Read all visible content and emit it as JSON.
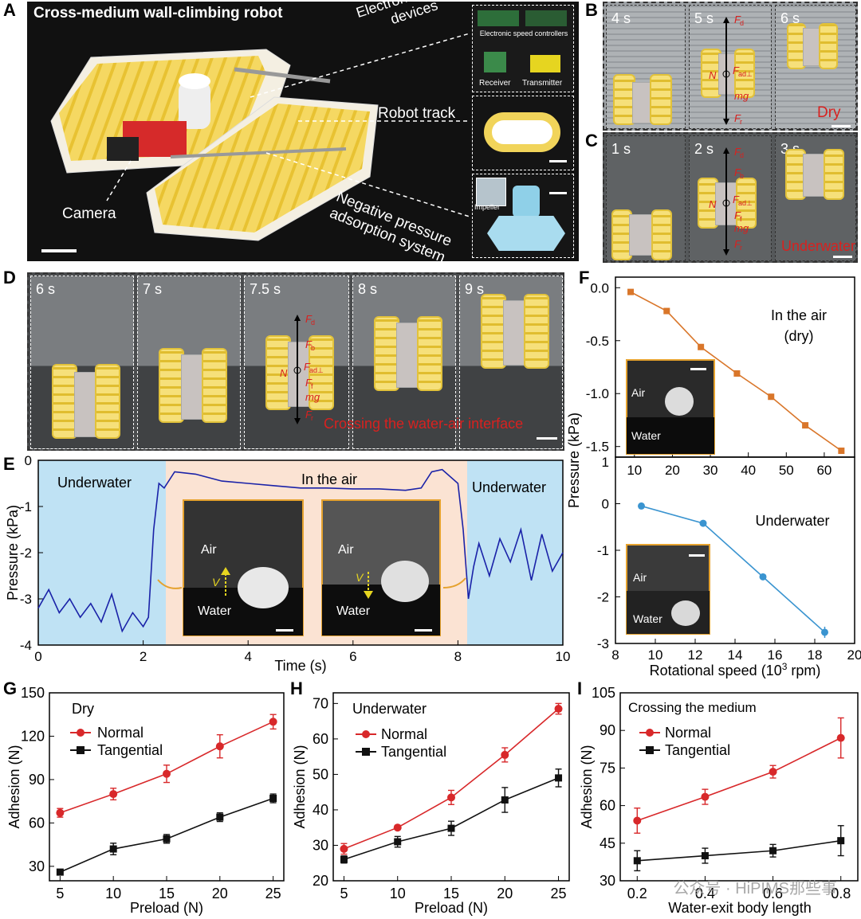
{
  "panel_labels": {
    "A": "A",
    "B": "B",
    "C": "C",
    "D": "D",
    "E": "E",
    "F": "F",
    "G": "G",
    "H": "H",
    "I": "I"
  },
  "panel_a": {
    "title": "Cross-medium wall-climbing robot",
    "callout_electronics": "Electronic control devices",
    "callout_track": "Robot track",
    "callout_adsorption": "Negative pressure adsorption system",
    "callout_camera": "Camera",
    "esc_label": "Electronic speed controllers",
    "receiver_label": "Receiver",
    "transmitter_label": "Transmitter",
    "impeller_label": "Impeller"
  },
  "panel_b": {
    "times": [
      "4 s",
      "5 s",
      "6 s"
    ],
    "condition": "Dry",
    "forces": [
      "F",
      "d",
      "F",
      "ad⊥",
      "N",
      "mg",
      "F",
      "r"
    ]
  },
  "panel_c": {
    "times": [
      "1 s",
      "2 s",
      "3 s"
    ],
    "condition": "Underwater",
    "forces": [
      "F",
      "d",
      "F",
      "b",
      "N",
      "F",
      "ad⊥",
      "F",
      "f",
      "mg",
      "F",
      "r"
    ]
  },
  "panel_d": {
    "times": [
      "6 s",
      "7 s",
      "7.5 s",
      "8 s",
      "9 s"
    ],
    "caption": "Crossing the water-air interface",
    "forces": [
      "F",
      "d",
      "F",
      "b",
      "N",
      "F",
      "ad⊥",
      "F",
      "f",
      "mg",
      "F",
      "r"
    ]
  },
  "panel_e": {
    "regions": [
      "Underwater",
      "In the air",
      "Underwater"
    ],
    "ylabel": "Pressure (kPa)",
    "xlabel": "Time (s)",
    "xticks": [
      "0",
      "2",
      "4",
      "6",
      "8",
      "10"
    ],
    "yticks": [
      "0",
      "-1",
      "-2",
      "-3",
      "-4"
    ],
    "inset_air": "Air",
    "inset_water": "Water",
    "velocity": "V"
  },
  "panel_f": {
    "ylabel": "Pressure (kPa)",
    "xlabel_top": "",
    "top_condition_1": "In the air",
    "top_condition_2": "(dry)",
    "bottom_condition": "Underwater",
    "top_xticks": [
      "10",
      "20",
      "30",
      "40",
      "50",
      "60"
    ],
    "top_yticks": [
      "0.0",
      "-0.5",
      "-1.0",
      "-1.5"
    ],
    "bottom_xticks": [
      "8",
      "10",
      "12",
      "14",
      "16",
      "18",
      "20"
    ],
    "bottom_yticks": [
      "1",
      "0",
      "-1",
      "-2",
      "-3"
    ],
    "xlabel": "Rotational speed (10",
    "xlabel_sup": "3",
    "xlabel_end": " rpm)",
    "inset_air": "Air",
    "inset_water": "Water"
  },
  "panel_g": {
    "condition": "Dry",
    "ylabel": "Adhesion (N)",
    "xlabel": "Preload (N)",
    "legend_normal": "Normal",
    "legend_tangential": "Tangential",
    "xticks": [
      "5",
      "10",
      "15",
      "20",
      "25"
    ],
    "yticks": [
      "150",
      "120",
      "90",
      "60",
      "30"
    ]
  },
  "panel_h": {
    "condition": "Underwater",
    "ylabel": "Adhesion (N)",
    "xlabel": "Preload (N)",
    "legend_normal": "Normal",
    "legend_tangential": "Tangential",
    "xticks": [
      "5",
      "10",
      "15",
      "20",
      "25"
    ],
    "yticks": [
      "70",
      "60",
      "50",
      "40",
      "30",
      "20"
    ]
  },
  "panel_i": {
    "condition": "Crossing the medium",
    "ylabel": "Adhesion (N)",
    "xlabel": "Water-exit body length",
    "legend_normal": "Normal",
    "legend_tangential": "Tangential",
    "xticks": [
      "0.2",
      "0.4",
      "0.6",
      "0.8"
    ],
    "yticks": [
      "105",
      "90",
      "75",
      "60",
      "45",
      "30"
    ]
  },
  "watermark": "公众号 · HiPIMS那些事",
  "colors": {
    "normal": "#d8282a",
    "tangential": "#111111",
    "air": "#d9762a",
    "underwater": "#3a94d0",
    "trace": "#1a22a8",
    "air_bg": "#fbe3d3",
    "water_bg": "#bfe2f4"
  },
  "chart_data": [
    {
      "id": "E",
      "type": "line",
      "title": "",
      "xlabel": "Time (s)",
      "ylabel": "Pressure (kPa)",
      "xlim": [
        0,
        10
      ],
      "ylim": [
        -4,
        0
      ],
      "series": [
        {
          "name": "pressure trace",
          "x": [
            0,
            0.2,
            0.4,
            0.6,
            0.8,
            1.0,
            1.2,
            1.4,
            1.6,
            1.8,
            2.0,
            2.1,
            2.2,
            2.3,
            2.4,
            2.6,
            3.0,
            3.5,
            4.0,
            4.5,
            5.0,
            5.5,
            6.0,
            6.5,
            7.0,
            7.3,
            7.5,
            7.7,
            8.0,
            8.1,
            8.2,
            8.3,
            8.4,
            8.6,
            8.8,
            9.0,
            9.2,
            9.4,
            9.6,
            9.8,
            10.0
          ],
          "y": [
            -3.2,
            -2.8,
            -3.3,
            -3.0,
            -3.4,
            -3.1,
            -3.5,
            -2.9,
            -3.7,
            -3.3,
            -3.6,
            -3.4,
            -1.5,
            -0.5,
            -0.6,
            -0.25,
            -0.3,
            -0.45,
            -0.5,
            -0.55,
            -0.6,
            -0.6,
            -0.62,
            -0.62,
            -0.65,
            -0.6,
            -0.25,
            -0.2,
            -0.5,
            -1.5,
            -3.0,
            -2.3,
            -1.8,
            -2.5,
            -1.7,
            -2.2,
            -1.5,
            -2.6,
            -1.6,
            -2.4,
            -2.0
          ]
        }
      ]
    },
    {
      "id": "F-top",
      "type": "line",
      "xlabel": "Rotational speed (10^3 rpm)",
      "ylabel": "Pressure (kPa)",
      "xlim": [
        5,
        68
      ],
      "ylim": [
        -1.6,
        0.1
      ],
      "series": [
        {
          "name": "In the air (dry)",
          "x": [
            9,
            18.5,
            27.5,
            37,
            46,
            55,
            64.5
          ],
          "y": [
            -0.04,
            -0.22,
            -0.56,
            -0.81,
            -1.03,
            -1.3,
            -1.54
          ]
        }
      ]
    },
    {
      "id": "F-bottom",
      "type": "line",
      "xlabel": "Rotational speed (10^3 rpm)",
      "ylabel": "Pressure (kPa)",
      "xlim": [
        8,
        20
      ],
      "ylim": [
        -3,
        1
      ],
      "series": [
        {
          "name": "Underwater",
          "x": [
            9.3,
            12.4,
            15.4,
            18.5
          ],
          "y": [
            -0.05,
            -0.42,
            -1.57,
            -2.76
          ]
        }
      ]
    },
    {
      "id": "G",
      "type": "line",
      "title": "Dry",
      "xlabel": "Preload (N)",
      "ylabel": "Adhesion (N)",
      "xlim": [
        4,
        26
      ],
      "ylim": [
        20,
        150
      ],
      "categories": [
        5,
        10,
        15,
        20,
        25
      ],
      "series": [
        {
          "name": "Normal",
          "values": [
            67,
            80,
            94,
            113,
            130
          ],
          "err": [
            3,
            4,
            6,
            8,
            5
          ]
        },
        {
          "name": "Tangential",
          "values": [
            26,
            42,
            49,
            64,
            77
          ],
          "err": [
            1,
            4,
            3,
            3,
            3
          ]
        }
      ]
    },
    {
      "id": "H",
      "type": "line",
      "title": "Underwater",
      "xlabel": "Preload (N)",
      "ylabel": "Adhesion (N)",
      "xlim": [
        4,
        26
      ],
      "ylim": [
        20,
        73
      ],
      "categories": [
        5,
        10,
        15,
        20,
        25
      ],
      "series": [
        {
          "name": "Normal",
          "values": [
            29,
            35,
            43.5,
            55.5,
            68.5
          ],
          "err": [
            1.5,
            0.5,
            2,
            2,
            1.5
          ]
        },
        {
          "name": "Tangential",
          "values": [
            26,
            31,
            34.8,
            42.8,
            49
          ],
          "err": [
            1,
            1.5,
            2,
            3.5,
            2.5
          ]
        }
      ]
    },
    {
      "id": "I",
      "type": "line",
      "title": "Crossing the medium",
      "xlabel": "Water-exit body length",
      "ylabel": "Adhesion (N)",
      "xlim": [
        0.15,
        0.85
      ],
      "ylim": [
        30,
        105
      ],
      "categories": [
        0.2,
        0.4,
        0.6,
        0.8
      ],
      "series": [
        {
          "name": "Normal",
          "values": [
            54,
            63.5,
            73.5,
            87
          ],
          "err": [
            5,
            3,
            2.5,
            8
          ]
        },
        {
          "name": "Tangential",
          "values": [
            38,
            40,
            42,
            46
          ],
          "err": [
            4,
            3,
            2.5,
            6
          ]
        }
      ]
    }
  ]
}
